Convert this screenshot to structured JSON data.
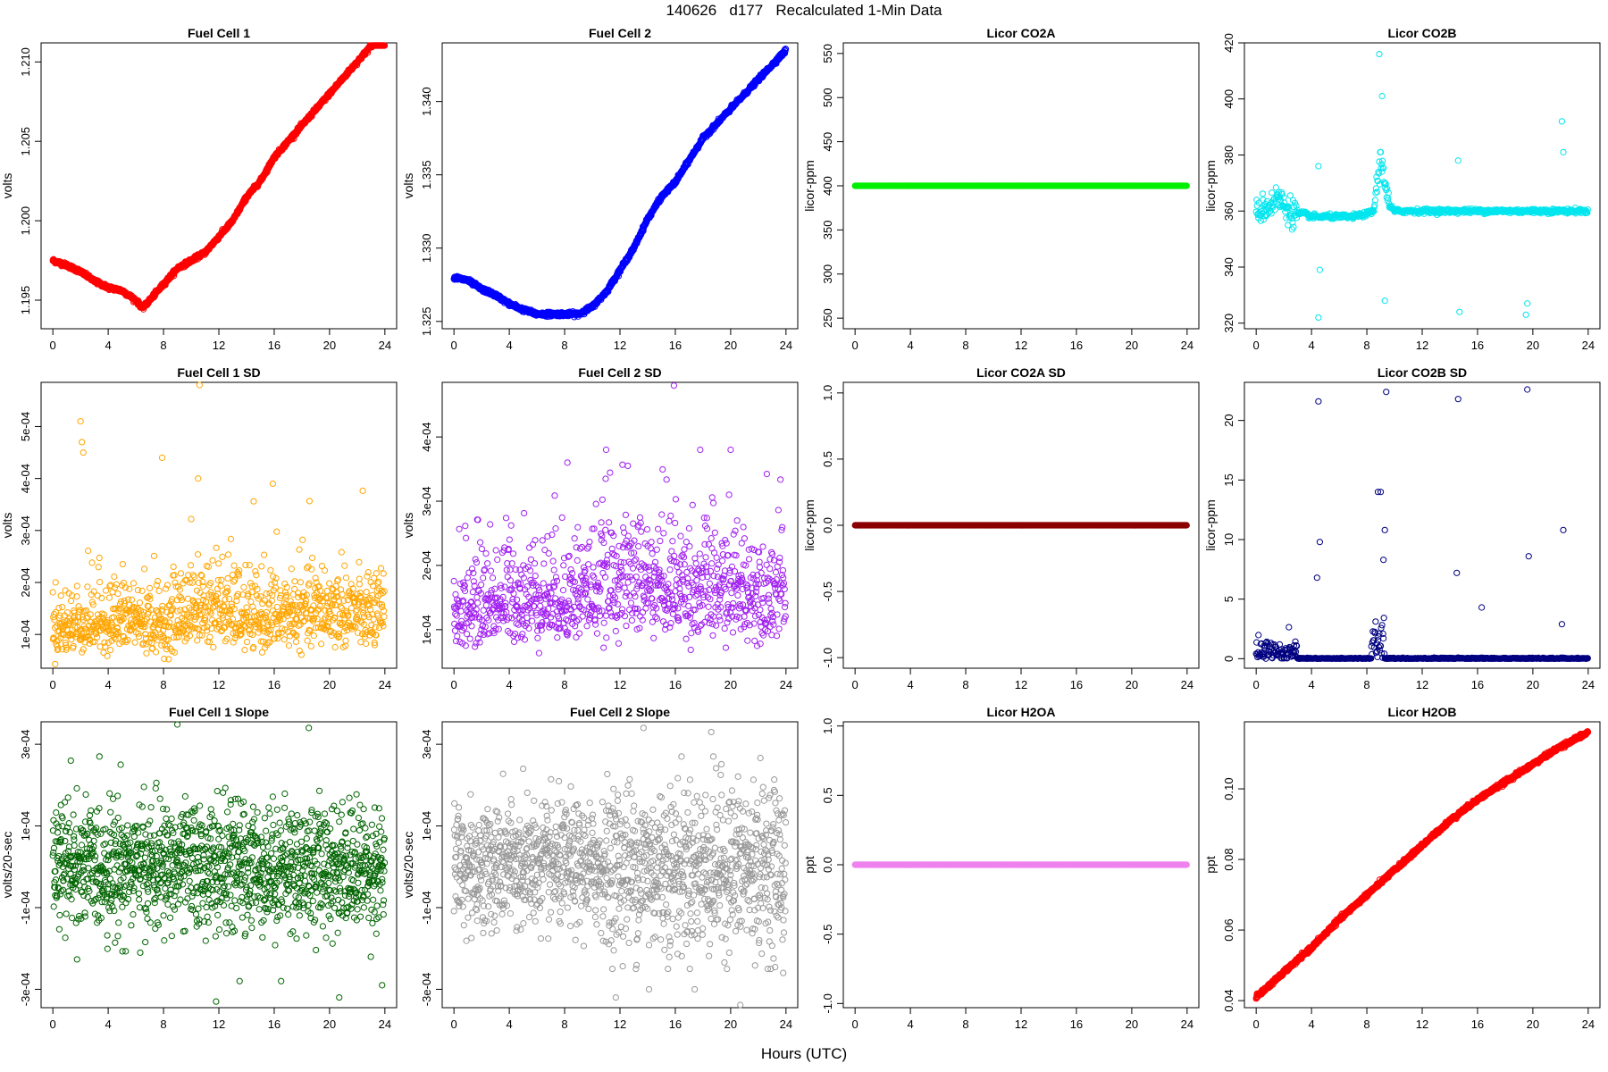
{
  "title": "140626   d177   Recalculated 1-Min Data",
  "common_xlabel": "Hours (UTC)",
  "chart_data": [
    {
      "type": "scatter",
      "title": "Fuel Cell 1",
      "ylabel": "volts",
      "color": "#ff0000",
      "style": "dense",
      "xlim": [
        0,
        24
      ],
      "ylim": [
        1.1932,
        1.2112
      ],
      "xticks": [
        0,
        4,
        8,
        12,
        16,
        20,
        24
      ],
      "yticks": [
        1.195,
        1.2,
        1.205,
        1.21
      ],
      "ytick_labels": [
        "1.195",
        "1.200",
        "1.205",
        "1.210"
      ],
      "x": [
        0,
        1,
        2,
        3,
        4,
        5,
        6,
        6.5,
        7,
        8,
        9,
        10,
        11,
        12,
        13,
        14,
        15,
        16,
        17,
        18,
        19,
        20,
        21,
        22,
        23,
        24
      ],
      "y": [
        1.1975,
        1.1972,
        1.1968,
        1.1962,
        1.1958,
        1.1956,
        1.195,
        1.1945,
        1.195,
        1.196,
        1.197,
        1.1975,
        1.198,
        1.199,
        1.2,
        1.2015,
        1.2025,
        1.204,
        1.205,
        1.206,
        1.207,
        1.208,
        1.209,
        1.21,
        1.211,
        1.212
      ]
    },
    {
      "type": "scatter",
      "title": "Fuel Cell 2",
      "ylabel": "volts",
      "color": "#0000ff",
      "style": "dense",
      "xlim": [
        0,
        24
      ],
      "ylim": [
        1.3245,
        1.344
      ],
      "xticks": [
        0,
        4,
        8,
        12,
        16,
        20,
        24
      ],
      "yticks": [
        1.325,
        1.33,
        1.335,
        1.34
      ],
      "ytick_labels": [
        "1.325",
        "1.330",
        "1.335",
        "1.340"
      ],
      "x": [
        0,
        1,
        2,
        3,
        4,
        5,
        6,
        7,
        8,
        9,
        10,
        11,
        12,
        13,
        14,
        15,
        16,
        17,
        18,
        19,
        20,
        21,
        22,
        23,
        24
      ],
      "y": [
        1.328,
        1.3278,
        1.3272,
        1.3268,
        1.3262,
        1.3258,
        1.3255,
        1.3255,
        1.3255,
        1.3255,
        1.326,
        1.327,
        1.3285,
        1.33,
        1.332,
        1.3335,
        1.3345,
        1.336,
        1.3375,
        1.3385,
        1.3395,
        1.3405,
        1.3415,
        1.3425,
        1.3435
      ]
    },
    {
      "type": "scatter",
      "title": "Licor CO2A",
      "ylabel": "licor-ppm",
      "color": "#00ee00",
      "style": "flat",
      "xlim": [
        0,
        24
      ],
      "ylim": [
        238,
        562
      ],
      "xticks": [
        0,
        4,
        8,
        12,
        16,
        20,
        24
      ],
      "yticks": [
        250,
        300,
        350,
        400,
        450,
        500,
        550
      ],
      "ytick_labels": [
        "250",
        "300",
        "350",
        "400",
        "450",
        "500",
        "550"
      ],
      "x": [
        0,
        24
      ],
      "y": [
        400,
        400
      ]
    },
    {
      "type": "scatter",
      "title": "Licor CO2B",
      "ylabel": "licor-ppm",
      "color": "#00e5ee",
      "style": "co2b",
      "xlim": [
        0,
        24
      ],
      "ylim": [
        318,
        420
      ],
      "xticks": [
        0,
        4,
        8,
        12,
        16,
        20,
        24
      ],
      "yticks": [
        320,
        340,
        360,
        380,
        400,
        420
      ],
      "ytick_labels": [
        "320",
        "340",
        "360",
        "380",
        "400",
        "420"
      ],
      "x": [
        0,
        0.5,
        1,
        1.5,
        2,
        2.5,
        3,
        3.5,
        4,
        5,
        6,
        7,
        8,
        8.5,
        8.8,
        9,
        9.3,
        9.6,
        10,
        11,
        12,
        14,
        16,
        18,
        20,
        22,
        24
      ],
      "y": [
        360,
        361,
        362,
        365,
        362,
        360,
        359,
        359,
        358,
        358,
        358,
        358,
        359,
        360,
        372,
        378,
        372,
        362,
        360,
        360,
        360,
        360,
        360,
        360,
        360,
        360,
        360
      ],
      "outliers_x": [
        4.5,
        4.5,
        4.6,
        8.9,
        9.1,
        9.3,
        14.6,
        14.7,
        19.5,
        19.6,
        22.1,
        22.2
      ],
      "outliers_y": [
        376,
        322,
        339,
        416,
        401,
        328,
        378,
        324,
        323,
        327,
        392,
        381
      ]
    },
    {
      "type": "scatter",
      "title": "Fuel Cell 1 SD",
      "ylabel": "volts",
      "color": "#ffa500",
      "style": "noise",
      "xlim": [
        0,
        24
      ],
      "ylim": [
        3.5e-05,
        0.000585
      ],
      "xticks": [
        0,
        4,
        8,
        12,
        16,
        20,
        24
      ],
      "yticks": [
        0.0001,
        0.0002,
        0.0003,
        0.0004,
        0.0005
      ],
      "ytick_labels": [
        "1e-04",
        "2e-04",
        "3e-04",
        "4e-04",
        "5e-04"
      ],
      "x": [
        0,
        2,
        4,
        6,
        8,
        10,
        12,
        14,
        16,
        18,
        20,
        22,
        24
      ],
      "y": [
        0.00011,
        0.00012,
        0.000125,
        0.00013,
        0.000115,
        0.00015,
        0.00015,
        0.00013,
        0.000135,
        0.00014,
        0.000145,
        0.00014,
        0.00013
      ],
      "outliers_x": [
        2.0,
        2.1,
        2.2,
        10.6,
        7.9,
        10.5,
        15.9
      ],
      "outliers_y": [
        0.00051,
        0.00047,
        0.00045,
        0.00058,
        0.00044,
        0.0004,
        0.00039
      ]
    },
    {
      "type": "scatter",
      "title": "Fuel Cell 2 SD",
      "ylabel": "volts",
      "color": "#a020f0",
      "style": "noise",
      "xlim": [
        0,
        24
      ],
      "ylim": [
        4e-05,
        0.000485
      ],
      "xticks": [
        0,
        4,
        8,
        12,
        16,
        20,
        24
      ],
      "yticks": [
        0.0001,
        0.0002,
        0.0003,
        0.0004
      ],
      "ytick_labels": [
        "1e-04",
        "2e-04",
        "3e-04",
        "4e-04"
      ],
      "x": [
        0,
        2,
        4,
        6,
        8,
        10,
        12,
        14,
        16,
        18,
        20,
        22,
        24
      ],
      "y": [
        0.00013,
        0.00014,
        0.00015,
        0.00015,
        0.00015,
        0.00016,
        0.00018,
        0.00017,
        0.00017,
        0.00016,
        0.00016,
        0.00016,
        0.00016
      ],
      "outliers_x": [
        15.9,
        11.0,
        17.8,
        20.0,
        8.2
      ],
      "outliers_y": [
        0.00048,
        0.00038,
        0.00038,
        0.00038,
        0.00036
      ]
    },
    {
      "type": "scatter",
      "title": "Licor CO2A SD",
      "ylabel": "licor-ppm",
      "color": "#8b0000",
      "style": "flat",
      "xlim": [
        0,
        24
      ],
      "ylim": [
        -1.08,
        1.08
      ],
      "xticks": [
        0,
        4,
        8,
        12,
        16,
        20,
        24
      ],
      "yticks": [
        -1,
        -0.5,
        0,
        0.5,
        1
      ],
      "ytick_labels": [
        "-1.0",
        "-0.5",
        "0.0",
        "0.5",
        "1.0"
      ],
      "x": [
        0,
        24
      ],
      "y": [
        0,
        0
      ]
    },
    {
      "type": "scatter",
      "title": "Licor CO2B SD",
      "ylabel": "licor-ppm",
      "color": "#000080",
      "style": "co2bsd",
      "xlim": [
        0,
        24
      ],
      "ylim": [
        -0.8,
        23.2
      ],
      "xticks": [
        0,
        4,
        8,
        12,
        16,
        20,
        24
      ],
      "yticks": [
        0,
        5,
        10,
        15,
        20
      ],
      "ytick_labels": [
        "0",
        "5",
        "10",
        "15",
        "20"
      ],
      "x": [
        0,
        1,
        2,
        3,
        4,
        8,
        8.5,
        9,
        9.5,
        10,
        24
      ],
      "y": [
        0.5,
        1.0,
        0.8,
        0.1,
        0.1,
        0.1,
        2.5,
        3,
        0.1,
        0.1,
        0.1
      ],
      "outliers_x": [
        4.5,
        4.6,
        4.4,
        8.8,
        9.0,
        9.2,
        9.3,
        9.4,
        14.6,
        14.5,
        19.6,
        19.7,
        22.2,
        22.1,
        16.3
      ],
      "outliers_y": [
        21.6,
        9.8,
        6.8,
        14,
        14,
        8.3,
        10.8,
        22.4,
        21.8,
        7.2,
        22.6,
        8.6,
        10.8,
        2.9,
        4.3
      ]
    },
    {
      "type": "scatter",
      "title": "Fuel Cell 1 Slope",
      "ylabel": "volts/20-sec",
      "color": "#006400",
      "style": "slope",
      "xlim": [
        -24,
        24
      ],
      "ylim": [
        -0.000345,
        0.000355
      ],
      "xticks": [
        0,
        4,
        8,
        12,
        16,
        20,
        24
      ],
      "yticks": [
        -0.0003,
        -0.0001,
        0.0001,
        0.0003
      ],
      "ytick_labels": [
        "-3e-04",
        "-1e-04",
        "1e-04",
        "3e-04"
      ],
      "x": [
        0,
        24
      ],
      "y": [
        0,
        0
      ],
      "outliers_x": [
        9.0,
        18.5,
        1.3,
        4.9,
        11.8,
        13.5,
        16.5,
        20.7,
        23.8
      ],
      "outliers_y": [
        0.00035,
        0.00034,
        0.00026,
        0.00025,
        -0.00033,
        -0.00028,
        -0.00028,
        -0.00032,
        -0.00029
      ]
    },
    {
      "type": "scatter",
      "title": "Fuel Cell 2 Slope",
      "ylabel": "volts/20-sec",
      "color": "#999999",
      "style": "slope",
      "xlim": [
        -24,
        24
      ],
      "ylim": [
        -0.000345,
        0.000355
      ],
      "xticks": [
        0,
        4,
        8,
        12,
        16,
        20,
        24
      ],
      "yticks": [
        -0.0003,
        -0.0001,
        0.0001,
        0.0003
      ],
      "ytick_labels": [
        "-3e-04",
        "-1e-04",
        "1e-04",
        "3e-04"
      ],
      "x": [
        0,
        24
      ],
      "y": [
        0,
        0
      ],
      "outliers_x": [
        13.7,
        18.6,
        5.0,
        11.7,
        14.1,
        17.4,
        20.7,
        23.8
      ],
      "outliers_y": [
        0.00034,
        0.00033,
        0.00024,
        -0.00032,
        -0.0003,
        -0.0003,
        -0.00034,
        -0.00026
      ]
    },
    {
      "type": "scatter",
      "title": "Licor H2OA",
      "ylabel": "ppt",
      "color": "#ee82ee",
      "style": "flat",
      "xlim": [
        0,
        24
      ],
      "ylim": [
        -1.03,
        1.03
      ],
      "xticks": [
        0,
        4,
        8,
        12,
        16,
        20,
        24
      ],
      "yticks": [
        -1,
        -0.5,
        0,
        0.5,
        1
      ],
      "ytick_labels": [
        "-1.0",
        "-0.5",
        "0.0",
        "0.5",
        "1.0"
      ],
      "x": [
        0,
        24
      ],
      "y": [
        0,
        0
      ]
    },
    {
      "type": "scatter",
      "title": "Licor H2OB",
      "ylabel": "ppt",
      "color": "#ff0000",
      "style": "dense",
      "xlim": [
        0,
        24
      ],
      "ylim": [
        0.038,
        0.119
      ],
      "xticks": [
        0,
        4,
        8,
        12,
        16,
        20,
        24
      ],
      "yticks": [
        0.04,
        0.06,
        0.08,
        0.1
      ],
      "ytick_labels": [
        "0.04",
        "0.06",
        "0.08",
        "0.10"
      ],
      "x": [
        0,
        2,
        4,
        6,
        8,
        10,
        12,
        14,
        16,
        18,
        20,
        22,
        24
      ],
      "y": [
        0.041,
        0.048,
        0.055,
        0.063,
        0.07,
        0.077,
        0.084,
        0.091,
        0.097,
        0.102,
        0.107,
        0.112,
        0.116
      ]
    }
  ]
}
